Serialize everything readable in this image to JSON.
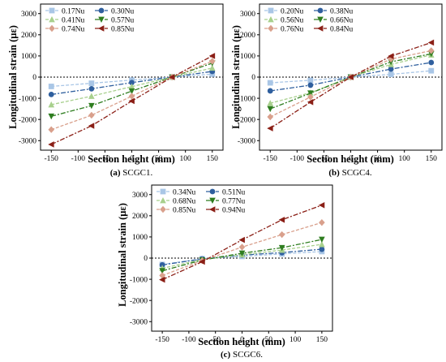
{
  "chart_data": [
    {
      "type": "line",
      "caption_letter": "(a)",
      "caption_text": " SCGC1.",
      "xlabel": "Section height (mm)",
      "ylabel": "Longitudinal strain (με)",
      "xlim": [
        -170,
        170
      ],
      "ylim": [
        -3450,
        3450
      ],
      "xticks": [
        -150,
        -100,
        -50,
        0,
        50,
        100,
        150
      ],
      "yticks": [
        -3000,
        -2000,
        -1000,
        0,
        1000,
        2000,
        3000
      ],
      "zero_line": true,
      "legend": {
        "columns": 2,
        "placement": "top-left"
      },
      "x": [
        -150,
        -75,
        0,
        75,
        150
      ],
      "series": [
        {
          "name": "0.17Nu",
          "color": "#a9c6e6",
          "marker": "square",
          "dash": "4,2",
          "values": [
            -440,
            -290,
            -140,
            0,
            140
          ]
        },
        {
          "name": "0.30Nu",
          "color": "#2f5f9e",
          "marker": "circle",
          "dash": "6,2,2,2",
          "values": [
            -820,
            -550,
            -260,
            0,
            270
          ]
        },
        {
          "name": "0.41Nu",
          "color": "#a8d08d",
          "marker": "triangle-up",
          "dash": "4,2",
          "values": [
            -1300,
            -900,
            -450,
            0,
            430
          ]
        },
        {
          "name": "0.57Nu",
          "color": "#2e7d1f",
          "marker": "triangle-down",
          "dash": "6,2,2,2",
          "values": [
            -1850,
            -1350,
            -660,
            0,
            660
          ]
        },
        {
          "name": "0.74Nu",
          "color": "#d9a08c",
          "marker": "diamond",
          "dash": "4,2",
          "values": [
            -2480,
            -1800,
            -900,
            0,
            750
          ]
        },
        {
          "name": "0.85Nu",
          "color": "#8b1f16",
          "marker": "triangle-left",
          "dash": "6,2,2,2",
          "values": [
            -3180,
            -2300,
            -1130,
            0,
            1000
          ]
        }
      ]
    },
    {
      "type": "line",
      "caption_letter": "(b)",
      "caption_text": " SCGC4.",
      "xlabel": "Section height (mm)",
      "ylabel": "Longitudinal strain (με)",
      "xlim": [
        -170,
        170
      ],
      "ylim": [
        -3450,
        3450
      ],
      "xticks": [
        -150,
        -100,
        -50,
        0,
        50,
        100,
        150
      ],
      "yticks": [
        -3000,
        -2000,
        -1000,
        0,
        1000,
        2000,
        3000
      ],
      "zero_line": true,
      "legend": {
        "columns": 2,
        "placement": "top-left"
      },
      "x": [
        -150,
        -75,
        0,
        75,
        150
      ],
      "series": [
        {
          "name": "0.20Nu",
          "color": "#a9c6e6",
          "marker": "square",
          "dash": "4,2",
          "values": [
            -270,
            -150,
            0,
            130,
            300
          ]
        },
        {
          "name": "0.38Nu",
          "color": "#2f5f9e",
          "marker": "circle",
          "dash": "6,2,2,2",
          "values": [
            -650,
            -380,
            0,
            380,
            690
          ]
        },
        {
          "name": "0.56Nu",
          "color": "#a8d08d",
          "marker": "triangle-up",
          "dash": "4,2",
          "values": [
            -1230,
            -740,
            0,
            600,
            1050
          ]
        },
        {
          "name": "0.66Nu",
          "color": "#2e7d1f",
          "marker": "triangle-down",
          "dash": "6,2,2,2",
          "values": [
            -1500,
            -760,
            0,
            720,
            1100
          ]
        },
        {
          "name": "0.76Nu",
          "color": "#d9a08c",
          "marker": "diamond",
          "dash": "4,2",
          "values": [
            -1880,
            -940,
            0,
            850,
            1250
          ]
        },
        {
          "name": "0.84Nu",
          "color": "#8b1f16",
          "marker": "triangle-left",
          "dash": "6,2,2,2",
          "values": [
            -2420,
            -1180,
            0,
            990,
            1630
          ]
        }
      ]
    },
    {
      "type": "line",
      "caption_letter": "(c)",
      "caption_text": " SCGC6.",
      "xlabel": "Section height (mm)",
      "ylabel": "Longitudinal strain (με)",
      "xlim": [
        -170,
        170
      ],
      "ylim": [
        -3450,
        3450
      ],
      "xticks": [
        -150,
        -100,
        -50,
        0,
        50,
        100,
        150
      ],
      "yticks": [
        -3000,
        -2000,
        -1000,
        0,
        1000,
        2000,
        3000
      ],
      "zero_line": true,
      "legend": {
        "columns": 2,
        "placement": "top-left"
      },
      "x": [
        -150,
        -75,
        0,
        75,
        150
      ],
      "series": [
        {
          "name": "0.34Nu",
          "color": "#a9c6e6",
          "marker": "square",
          "dash": "4,2",
          "values": [
            -300,
            -30,
            80,
            200,
            310
          ]
        },
        {
          "name": "0.51Nu",
          "color": "#2f5f9e",
          "marker": "circle",
          "dash": "6,2,2,2",
          "values": [
            -320,
            -40,
            140,
            260,
            420
          ]
        },
        {
          "name": "0.68Nu",
          "color": "#a8d08d",
          "marker": "triangle-up",
          "dash": "4,2",
          "values": [
            -480,
            -70,
            160,
            380,
            650
          ]
        },
        {
          "name": "0.77Nu",
          "color": "#2e7d1f",
          "marker": "triangle-down",
          "dash": "6,2,2,2",
          "values": [
            -600,
            -90,
            230,
            490,
            880
          ]
        },
        {
          "name": "0.85Nu",
          "color": "#d9a08c",
          "marker": "diamond",
          "dash": "4,2",
          "values": [
            -820,
            -120,
            520,
            1110,
            1680
          ]
        },
        {
          "name": "0.94Nu",
          "color": "#8b1f16",
          "marker": "triangle-left",
          "dash": "6,2,2,2",
          "values": [
            -1020,
            -170,
            860,
            1810,
            2500
          ]
        }
      ]
    }
  ]
}
